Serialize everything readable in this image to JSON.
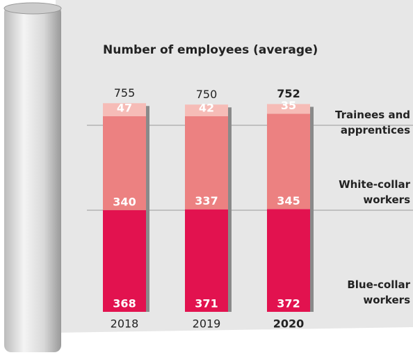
{
  "chart_data": {
    "type": "stacked-bar",
    "title": "Number of employees (average)",
    "categories": [
      "2018",
      "2019",
      "2020"
    ],
    "series": [
      {
        "name": "Blue-collar workers",
        "color": "#e2124f",
        "values": [
          368,
          371,
          372
        ]
      },
      {
        "name": "White-collar workers",
        "color": "#ec8181",
        "values": [
          340,
          337,
          345
        ]
      },
      {
        "name": "Trainees and apprentices",
        "color": "#f6bcb7",
        "values": [
          47,
          42,
          35
        ]
      }
    ],
    "totals": [
      755,
      750,
      752
    ]
  }
}
